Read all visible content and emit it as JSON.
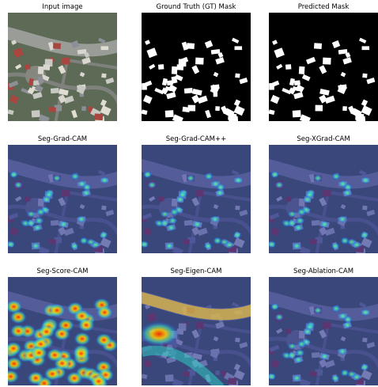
{
  "panels": [
    {
      "title": "Input image"
    },
    {
      "title": "Ground Truth (GT) Mask"
    },
    {
      "title": "Predicted Mask"
    },
    {
      "title": "Seg-Grad-CAM"
    },
    {
      "title": "Seg-Grad-CAM++"
    },
    {
      "title": "Seg-XGrad-CAM"
    },
    {
      "title": "Seg-Score-CAM"
    },
    {
      "title": "Seg-Eigen-CAM"
    },
    {
      "title": "Seg-Ablation-CAM"
    }
  ]
}
